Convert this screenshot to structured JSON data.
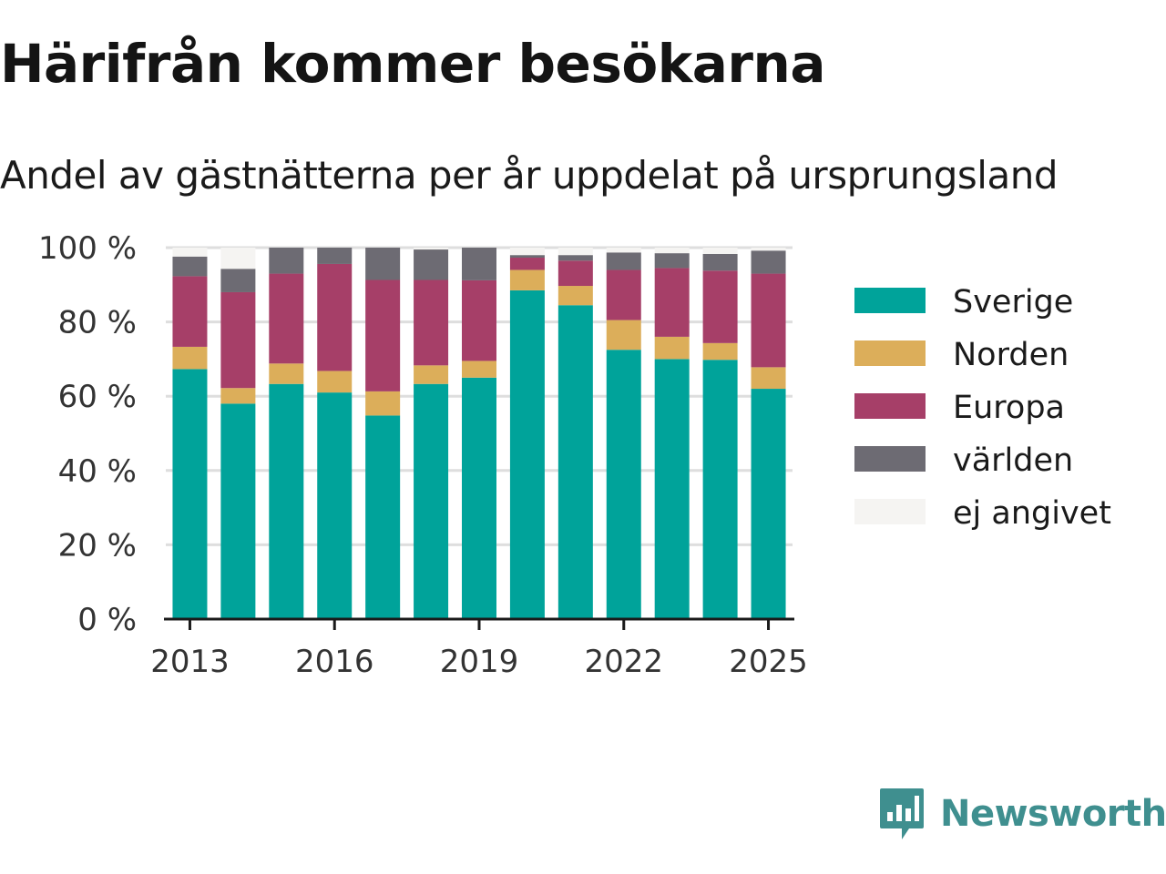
{
  "header": {
    "title": "Härifrån kommer besökarna",
    "subtitle": "Andel av gästnätterna per år uppdelat på ursprungsland"
  },
  "logo": {
    "text": "Newsworthy",
    "icon": "bar-chart-speech-bubble-icon",
    "color": "#3f8f8f"
  },
  "chart_data": {
    "type": "bar",
    "stacked": true,
    "categories": [
      "2013",
      "2014",
      "2015",
      "2016",
      "2017",
      "2018",
      "2019",
      "2020",
      "2021",
      "2022",
      "2023",
      "2024",
      "2025"
    ],
    "x_tick_labels": [
      "2013",
      "2016",
      "2019",
      "2022",
      "2025"
    ],
    "x_tick_indices": [
      0,
      3,
      6,
      9,
      12
    ],
    "y_tick_labels": [
      "0 %",
      "20 %",
      "40 %",
      "60 %",
      "80 %",
      "100 %"
    ],
    "y_tick_values": [
      0,
      20,
      40,
      60,
      80,
      100
    ],
    "ylim": [
      0,
      100
    ],
    "grid": true,
    "legend_position": "right",
    "series": [
      {
        "name": "Sverige",
        "color": "#00a39a",
        "values": [
          67.3,
          58.0,
          63.3,
          61.0,
          54.8,
          63.3,
          65.0,
          88.5,
          84.5,
          72.5,
          70.0,
          69.8,
          62.0
        ]
      },
      {
        "name": "Norden",
        "color": "#dcae5a",
        "values": [
          6.0,
          4.2,
          5.5,
          5.8,
          6.5,
          5.0,
          4.5,
          5.5,
          5.2,
          8.0,
          6.0,
          4.5,
          5.8
        ]
      },
      {
        "name": "Europa",
        "color": "#a63f68",
        "values": [
          19.0,
          25.8,
          24.2,
          28.8,
          30.0,
          23.0,
          21.7,
          3.3,
          6.8,
          13.5,
          18.5,
          19.5,
          25.2
        ]
      },
      {
        "name": "världen",
        "color": "#6d6b73",
        "values": [
          5.3,
          6.3,
          7.0,
          4.4,
          8.7,
          8.2,
          8.8,
          0.7,
          1.5,
          4.7,
          4.0,
          4.5,
          6.2
        ]
      },
      {
        "name": "ej angivet",
        "color": "#f5f4f2",
        "values": [
          2.4,
          5.7,
          0.0,
          0.0,
          0.0,
          0.5,
          0.0,
          2.0,
          2.0,
          1.3,
          1.5,
          1.7,
          0.8
        ]
      }
    ]
  }
}
